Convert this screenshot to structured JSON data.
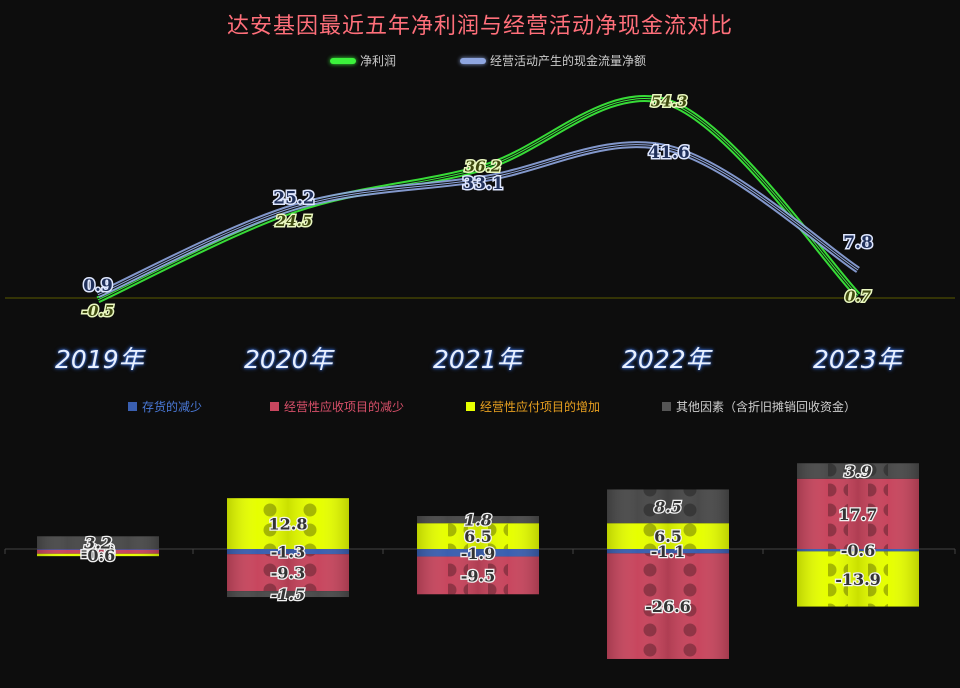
{
  "title": "达安基因最近五年净利润与经营活动净现金流对比",
  "colors": {
    "title": "#ff6f7a",
    "net_profit": "#3cf23c",
    "cash_flow": "#8fa6e0",
    "inventory": "#3a5fb0",
    "receivables": "#c8465e",
    "payables": "#e6ff00",
    "others": "#4a4a4a"
  },
  "chart_data": [
    {
      "type": "line",
      "categories": [
        "2019年",
        "2020年",
        "2021年",
        "2022年",
        "2023年"
      ],
      "series": [
        {
          "name": "净利润",
          "values": [
            -0.5,
            24.5,
            36.2,
            54.3,
            0.7
          ]
        },
        {
          "name": "经营活动产生的现金流量净额",
          "values": [
            0.9,
            25.2,
            33.1,
            41.6,
            7.8
          ]
        }
      ]
    },
    {
      "type": "bar",
      "stacked": true,
      "categories": [
        "2019年",
        "2020年",
        "2021年",
        "2022年",
        "2023年"
      ],
      "series": [
        {
          "name": "存货的减少",
          "values": [
            -0.2,
            -1.3,
            -1.9,
            -1.1,
            -0.6
          ]
        },
        {
          "name": "经营性应收项目的减少",
          "values": [
            -1.0,
            -9.3,
            -9.5,
            -26.6,
            17.7
          ]
        },
        {
          "name": "经营性应付项目的增加",
          "values": [
            -0.6,
            12.8,
            6.5,
            6.5,
            -13.9
          ]
        },
        {
          "name": "其他因素（含折旧摊销回收资金）",
          "values": [
            3.2,
            -1.5,
            1.8,
            8.5,
            3.9
          ]
        }
      ]
    }
  ]
}
